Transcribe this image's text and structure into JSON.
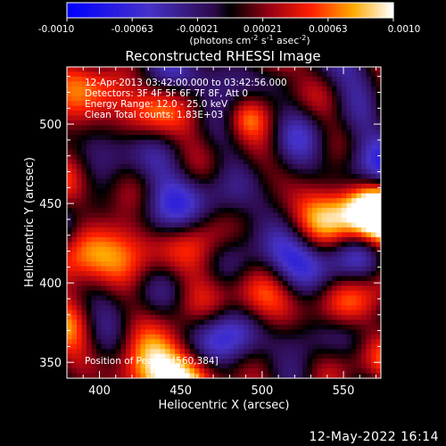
{
  "chart_data": {
    "type": "heatmap",
    "title": "Reconstructed RHESSI Image",
    "xlabel": "Heliocentric X (arcsec)",
    "ylabel": "Heliocentric Y (arcsec)",
    "xlim": [
      380,
      573
    ],
    "ylim": [
      340,
      536
    ],
    "xticks": [
      400,
      450,
      500,
      550
    ],
    "yticks": [
      350,
      400,
      450,
      500
    ],
    "grid": false,
    "colorbar": {
      "position": "top",
      "min": -0.001,
      "max": 0.001,
      "ticks": [
        "-0.0010",
        "-0.00063",
        "-0.00021",
        "0.00021",
        "0.00063",
        "0.0010"
      ],
      "unit_text": "(photons cm",
      "unit_sup1": "-2",
      "unit_mid1": " s",
      "unit_sup2": "-1",
      "unit_mid2": " asec",
      "unit_sup3": "-2",
      "unit_end": ")"
    },
    "annotations": [
      "12-Apr-2013 03:42:00.000 to 03:42:56.000",
      "Detectors: 3F 4F 5F 6F 7F 8F, Att 0",
      "Energy Range: 12.0 - 25.0 keV",
      "Clean    Total counts: 1.83E+03"
    ],
    "peak_label": "Position of Peak = [560,384]",
    "peak": [
      560,
      384
    ],
    "colors": {
      "low": "#0000ff",
      "mid_neg": "#5a3cc8",
      "zero": "#000000",
      "pos_mid": "#ff2200",
      "high": "#ffffff"
    }
  },
  "footer_timestamp": "12-May-2022 16:14"
}
